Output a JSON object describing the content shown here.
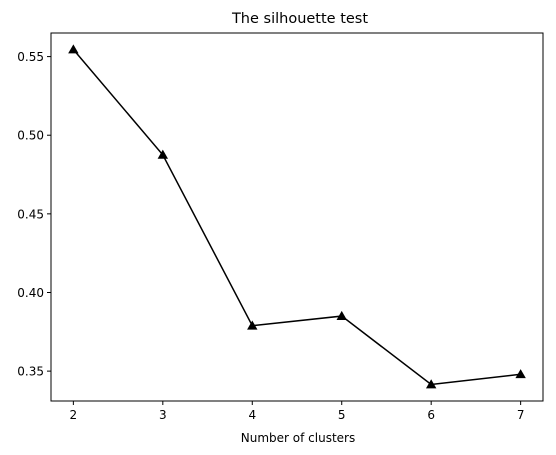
{
  "chart_data": {
    "type": "line",
    "title": "The silhouette test",
    "xlabel": "Number of clusters",
    "ylabel": "",
    "x": [
      2,
      3,
      4,
      5,
      6,
      7
    ],
    "series": [
      {
        "values": [
          0.5545,
          0.4875,
          0.3789,
          0.385,
          0.3415,
          0.348
        ],
        "color": "#000000",
        "marker": "triangle-up"
      }
    ],
    "xlim": [
      1.75,
      7.25
    ],
    "ylim": [
      0.331,
      0.565
    ],
    "xticks": [
      2,
      3,
      4,
      5,
      6,
      7
    ],
    "yticks": [
      0.35,
      0.4,
      0.45,
      0.5,
      0.55
    ],
    "ytick_labels": [
      "0.35",
      "0.40",
      "0.45",
      "0.50",
      "0.55"
    ],
    "grid": false,
    "legend": "none"
  }
}
